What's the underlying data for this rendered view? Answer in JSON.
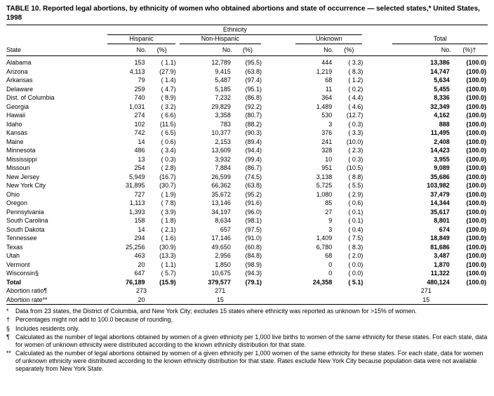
{
  "title": "TABLE 10. Reported legal abortions, by ethnicity of women who obtained abortions and state of occurrence — selected states,* United States, 1998",
  "table": {
    "group_header": "Ethnicity",
    "col_groups": [
      "Hispanic",
      "Non-Hispanic",
      "Unknown",
      "Total"
    ],
    "state_header": "State",
    "no_header": "No.",
    "pct_header": "(%)",
    "pct_total_header": "(%)†",
    "rows": [
      {
        "state": "Alabama",
        "bold": false,
        "cells": [
          "153",
          "( 1.1)",
          "12,789",
          "(95.5)",
          "444",
          "( 3.3)",
          "13,386",
          "(100.0)"
        ]
      },
      {
        "state": "Arizona",
        "bold": false,
        "cells": [
          "4,113",
          "(27.9)",
          "9,415",
          "(63.8)",
          "1,219",
          "( 8.3)",
          "14,747",
          "(100.0)"
        ]
      },
      {
        "state": "Arkansas",
        "bold": false,
        "cells": [
          "79",
          "( 1.4)",
          "5,487",
          "(97.4)",
          "68",
          "( 1.2)",
          "5,634",
          "(100.0)"
        ]
      },
      {
        "state": "Delaware",
        "bold": false,
        "cells": [
          "259",
          "( 4.7)",
          "5,185",
          "(95.1)",
          "11",
          "( 0.2)",
          "5,455",
          "(100.0)"
        ]
      },
      {
        "state": "Dist. of Columbia",
        "bold": false,
        "cells": [
          "740",
          "( 8.9)",
          "7,232",
          "(86.8)",
          "364",
          "( 4.4)",
          "8,336",
          "(100.0)"
        ]
      },
      {
        "state": "Georgia",
        "bold": false,
        "cells": [
          "1,031",
          "( 3.2)",
          "29,829",
          "(92.2)",
          "1,489",
          "( 4.6)",
          "32,349",
          "(100.0)"
        ]
      },
      {
        "state": "Hawaii",
        "bold": false,
        "cells": [
          "274",
          "( 6.6)",
          "3,358",
          "(80.7)",
          "530",
          "(12.7)",
          "4,162",
          "(100.0)"
        ]
      },
      {
        "state": "Idaho",
        "bold": false,
        "cells": [
          "102",
          "(11.5)",
          "783",
          "(88.2)",
          "3",
          "( 0.3)",
          "888",
          "(100.0)"
        ]
      },
      {
        "state": "Kansas",
        "bold": false,
        "cells": [
          "742",
          "( 6.5)",
          "10,377",
          "(90.3)",
          "376",
          "( 3.3)",
          "11,495",
          "(100.0)"
        ]
      },
      {
        "state": "Maine",
        "bold": false,
        "cells": [
          "14",
          "( 0.6)",
          "2,153",
          "(89.4)",
          "241",
          "(10.0)",
          "2,408",
          "(100.0)"
        ]
      },
      {
        "state": "Minnesota",
        "bold": false,
        "cells": [
          "486",
          "( 3.4)",
          "13,609",
          "(94.4)",
          "328",
          "( 2.3)",
          "14,423",
          "(100.0)"
        ]
      },
      {
        "state": "Mississippi",
        "bold": false,
        "cells": [
          "13",
          "( 0.3)",
          "3,932",
          "(99.4)",
          "10",
          "( 0.3)",
          "3,955",
          "(100.0)"
        ]
      },
      {
        "state": "Missouri",
        "bold": false,
        "cells": [
          "254",
          "( 2.8)",
          "7,884",
          "(86.7)",
          "951",
          "(10.5)",
          "9,089",
          "(100.0)"
        ]
      },
      {
        "state": "New Jersey",
        "bold": false,
        "cells": [
          "5,949",
          "(16.7)",
          "26,599",
          "(74.5)",
          "3,138",
          "( 8.8)",
          "35,686",
          "(100.0)"
        ]
      },
      {
        "state": "New York City",
        "bold": false,
        "cells": [
          "31,895",
          "(30.7)",
          "66,362",
          "(63.8)",
          "5,725",
          "( 5.5)",
          "103,982",
          "(100.0)"
        ]
      },
      {
        "state": "Ohio",
        "bold": false,
        "cells": [
          "727",
          "( 1.9)",
          "35,672",
          "(95.2)",
          "1,080",
          "( 2.9)",
          "37,479",
          "(100.0)"
        ]
      },
      {
        "state": "Oregon",
        "bold": false,
        "cells": [
          "1,113",
          "( 7.8)",
          "13,146",
          "(91.6)",
          "85",
          "( 0.6)",
          "14,344",
          "(100.0)"
        ]
      },
      {
        "state": "Pennsylvania",
        "bold": false,
        "cells": [
          "1,393",
          "( 3.9)",
          "34,197",
          "(96.0)",
          "27",
          "( 0.1)",
          "35,617",
          "(100.0)"
        ]
      },
      {
        "state": "South Carolina",
        "bold": false,
        "cells": [
          "158",
          "( 1.8)",
          "8,634",
          "(98.1)",
          "9",
          "( 0.1)",
          "8,801",
          "(100.0)"
        ]
      },
      {
        "state": "South Dakota",
        "bold": false,
        "cells": [
          "14",
          "( 2.1)",
          "657",
          "(97.5)",
          "3",
          "( 0.4)",
          "674",
          "(100.0)"
        ]
      },
      {
        "state": "Tennessee",
        "bold": false,
        "cells": [
          "294",
          "( 1.6)",
          "17,146",
          "(91.0)",
          "1,409",
          "( 7.5)",
          "18,849",
          "(100.0)"
        ]
      },
      {
        "state": "Texas",
        "bold": false,
        "cells": [
          "25,256",
          "(30.9)",
          "49,650",
          "(60.8)",
          "6,780",
          "( 8.3)",
          "81,686",
          "(100.0)"
        ]
      },
      {
        "state": "Utah",
        "bold": false,
        "cells": [
          "463",
          "(13.3)",
          "2,956",
          "(84.8)",
          "68",
          "( 2.0)",
          "3,487",
          "(100.0)"
        ]
      },
      {
        "state": "Vermont",
        "bold": false,
        "cells": [
          "20",
          "( 1.1)",
          "1,850",
          "(98.9)",
          "0",
          "( 0.0)",
          "1,870",
          "(100.0)"
        ]
      },
      {
        "state": "Wisconsin§",
        "bold": false,
        "cells": [
          "647",
          "( 5.7)",
          "10,675",
          "(94.3)",
          "0",
          "( 0.0)",
          "11,322",
          "(100.0)"
        ]
      },
      {
        "state": "Total",
        "bold": true,
        "cells": [
          "76,189",
          "(15.9)",
          "379,577",
          "(79.1)",
          "24,358",
          "( 5.1)",
          "480,124",
          "(100.0)"
        ]
      }
    ],
    "summary_rows": [
      {
        "label": "Abortion ratio¶",
        "hispanic": "273",
        "non_hispanic": "271",
        "unknown": "",
        "total": "271"
      },
      {
        "label": "Abortion rate**",
        "hispanic": "20",
        "non_hispanic": "15",
        "unknown": "",
        "total": "15"
      }
    ]
  },
  "footnotes": [
    {
      "marker": "*",
      "text": "Data from 23 states, the District of Columbia, and New York City; excludes 15 states where ethnicity was reported as unknown for >15% of women."
    },
    {
      "marker": "†",
      "text": "Percentages might not add to 100.0 because of rounding."
    },
    {
      "marker": "§",
      "text": "Includes residents only."
    },
    {
      "marker": "¶",
      "text": "Calculated as the number of legal abortions obtained by women of a given ethnicity per 1,000 live births to women of the same ethnicity for these states. For each state, data for women of unknown ethnicity were distributed according to the known ethnicity distribution for that state."
    },
    {
      "marker": "**",
      "text": "Calculated as the number of legal abortions obtained by women of a given ethnicity per 1,000 women of the same ethnicity for these states. For each state, data for women of unknown ethnicity were distributed according to the known ethnicity distribution for that state. Rates exclude New York City because population data were not available separately from New York State."
    }
  ]
}
